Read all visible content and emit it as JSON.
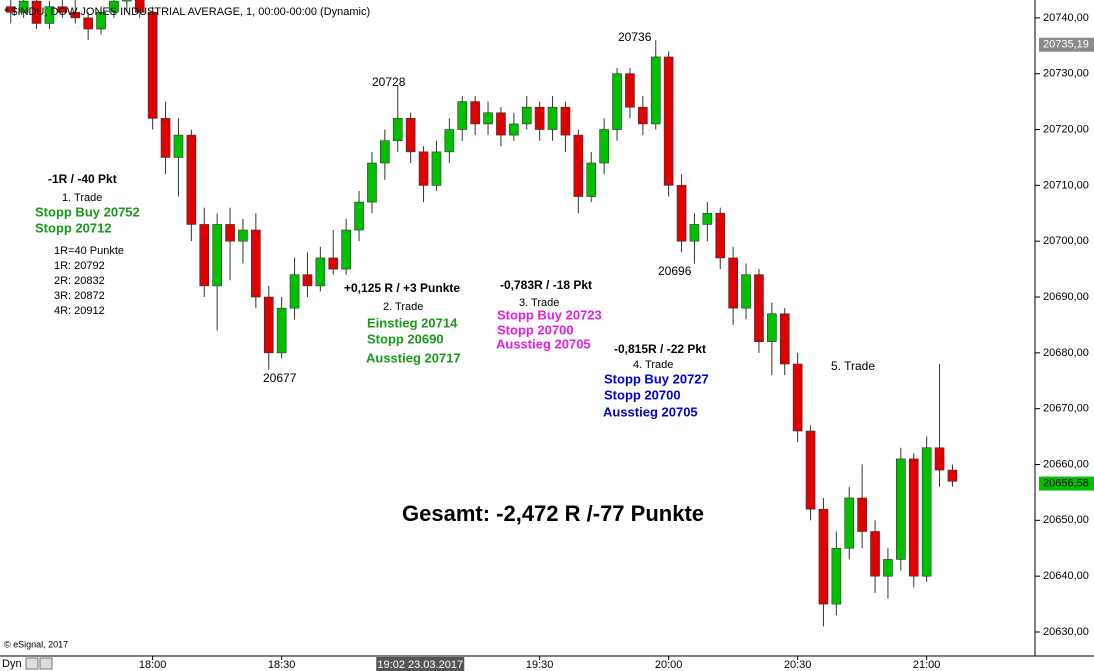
{
  "chart_data": {
    "type": "candlestick",
    "title": "* $INDU, DOW JONES INDUSTRIAL AVERAGE, 1, 00:00-00:00 (Dynamic)",
    "x": [
      1047,
      1050,
      1053,
      1056,
      1059,
      1062,
      1065,
      1068,
      1071,
      1074,
      1077,
      1080,
      1083,
      1086,
      1089,
      1092,
      1095,
      1098,
      1101,
      1104,
      1107,
      1110,
      1113,
      1116,
      1119,
      1122,
      1125,
      1128,
      1131,
      1134,
      1137,
      1140,
      1143,
      1146,
      1149,
      1152,
      1155,
      1158,
      1161,
      1164,
      1167,
      1170,
      1173,
      1176,
      1179,
      1182,
      1185,
      1188,
      1191,
      1194,
      1197,
      1200,
      1203,
      1206,
      1209,
      1212,
      1215,
      1218,
      1221,
      1224,
      1227,
      1230,
      1233,
      1236,
      1239,
      1242,
      1245,
      1248,
      1251,
      1254,
      1257,
      1260,
      1263,
      1266
    ],
    "ohlc": [
      [
        20742,
        20745,
        20739,
        20741
      ],
      [
        20741,
        20745,
        20740,
        20743
      ],
      [
        20743,
        20744,
        20738,
        20739
      ],
      [
        20739,
        20743,
        20738,
        20742
      ],
      [
        20742,
        20745,
        20740,
        20741
      ],
      [
        20741,
        20744,
        20739,
        20740
      ],
      [
        20740,
        20741,
        20736,
        20738
      ],
      [
        20738,
        20742,
        20737,
        20741
      ],
      [
        20741,
        20745,
        20740,
        20743
      ],
      [
        20743,
        20746,
        20741,
        20744
      ],
      [
        20744,
        20746,
        20740,
        20741
      ],
      [
        20741,
        20742,
        20720,
        20722
      ],
      [
        20722,
        20725,
        20712,
        20715
      ],
      [
        20715,
        20722,
        20708,
        20719
      ],
      [
        20719,
        20720,
        20700,
        20703
      ],
      [
        20703,
        20706,
        20690,
        20692
      ],
      [
        20692,
        20705,
        20684,
        20703
      ],
      [
        20703,
        20706,
        20693,
        20700
      ],
      [
        20700,
        20704,
        20696,
        20702
      ],
      [
        20702,
        20705,
        20688,
        20690
      ],
      [
        20690,
        20692,
        20677,
        20680
      ],
      [
        20680,
        20690,
        20679,
        20688
      ],
      [
        20688,
        20697,
        20686,
        20694
      ],
      [
        20694,
        20698,
        20690,
        20692
      ],
      [
        20692,
        20699,
        20691,
        20697
      ],
      [
        20697,
        20702,
        20694,
        20695
      ],
      [
        20695,
        20704,
        20694,
        20702
      ],
      [
        20702,
        20709,
        20700,
        20707
      ],
      [
        20707,
        20716,
        20705,
        20714
      ],
      [
        20714,
        20720,
        20711,
        20718
      ],
      [
        20718,
        20728,
        20716,
        20722
      ],
      [
        20722,
        20723,
        20714,
        20716
      ],
      [
        20716,
        20717,
        20707,
        20710
      ],
      [
        20710,
        20718,
        20709,
        20716
      ],
      [
        20716,
        20722,
        20714,
        20720
      ],
      [
        20720,
        20726,
        20718,
        20725
      ],
      [
        20725,
        20726,
        20719,
        20721
      ],
      [
        20721,
        20725,
        20719,
        20723
      ],
      [
        20723,
        20724,
        20717,
        20719
      ],
      [
        20719,
        20723,
        20718,
        20721
      ],
      [
        20721,
        20726,
        20720,
        20724
      ],
      [
        20724,
        20725,
        20718,
        20720
      ],
      [
        20720,
        20726,
        20718,
        20724
      ],
      [
        20724,
        20725,
        20716,
        20719
      ],
      [
        20719,
        20720,
        20705,
        20708
      ],
      [
        20708,
        20716,
        20707,
        20714
      ],
      [
        20714,
        20722,
        20712,
        20720
      ],
      [
        20720,
        20731,
        20718,
        20730
      ],
      [
        20730,
        20731,
        20722,
        20724
      ],
      [
        20724,
        20726,
        20719,
        20721
      ],
      [
        20721,
        20736,
        20720,
        20733
      ],
      [
        20733,
        20734,
        20708,
        20710
      ],
      [
        20710,
        20712,
        20698,
        20700
      ],
      [
        20700,
        20705,
        20696,
        20703
      ],
      [
        20703,
        20707,
        20700,
        20705
      ],
      [
        20705,
        20706,
        20695,
        20697
      ],
      [
        20697,
        20699,
        20685,
        20688
      ],
      [
        20688,
        20696,
        20686,
        20694
      ],
      [
        20694,
        20695,
        20680,
        20682
      ],
      [
        20682,
        20689,
        20676,
        20687
      ],
      [
        20687,
        20688,
        20676,
        20678
      ],
      [
        20678,
        20680,
        20664,
        20666
      ],
      [
        20666,
        20667,
        20650,
        20652
      ],
      [
        20652,
        20654,
        20631,
        20635
      ],
      [
        20635,
        20648,
        20633,
        20645
      ],
      [
        20645,
        20656,
        20643,
        20654
      ],
      [
        20654,
        20660,
        20645,
        20648
      ],
      [
        20648,
        20650,
        20637,
        20640
      ],
      [
        20640,
        20645,
        20636,
        20643
      ],
      [
        20643,
        20663,
        20641,
        20661
      ],
      [
        20661,
        20662,
        20638,
        20640
      ],
      [
        20640,
        20665,
        20639,
        20663
      ],
      [
        20663,
        20678,
        20656,
        20659
      ],
      [
        20659,
        20660,
        20656,
        20657
      ]
    ],
    "up_color": "#00c000",
    "down_color": "#e00000",
    "xlim": [
      1044.5,
      1285.2
    ],
    "xticks": [
      {
        "value": 1080,
        "label": "18:00"
      },
      {
        "value": 1110,
        "label": "18:30"
      },
      {
        "value": 1170,
        "label": "19:30"
      },
      {
        "value": 1200,
        "label": "20:00"
      },
      {
        "value": 1230,
        "label": "20:30"
      },
      {
        "value": 1260,
        "label": "21:00"
      }
    ],
    "x_cursor": {
      "value": 1142,
      "label": "19:02 23.03.2017"
    },
    "ylim": [
      20625.7,
      20743.2
    ],
    "yticks": [
      {
        "value": 20630,
        "label": "20630,00"
      },
      {
        "value": 20640,
        "label": "20640,00"
      },
      {
        "value": 20650,
        "label": "20650,00"
      },
      {
        "value": 20660,
        "label": "20660,00"
      },
      {
        "value": 20670,
        "label": "20670,00"
      },
      {
        "value": 20680,
        "label": "20680,00"
      },
      {
        "value": 20690,
        "label": "20690,00"
      },
      {
        "value": 20700,
        "label": "20700,00"
      },
      {
        "value": 20710,
        "label": "20710,00"
      },
      {
        "value": 20720,
        "label": "20720,00"
      },
      {
        "value": 20730,
        "label": "20730,00"
      },
      {
        "value": 20740,
        "label": "20740,00"
      }
    ],
    "price_markers": [
      {
        "value": 20735.19,
        "label": "20735,19",
        "color": "#8a8a8a"
      },
      {
        "value": 20656.58,
        "label": "20656,58",
        "color": "#00c000"
      }
    ],
    "annotations": [
      "-1R / -40 Pkt",
      "1. Trade",
      "Stopp Buy 20752",
      "Stopp 20712",
      "1R=40 Punkte",
      "1R: 20792",
      "2R: 20832",
      "3R: 20872",
      "4R: 20912",
      "20728",
      "20736",
      "20677",
      "20696",
      "+0,125 R / +3 Punkte",
      "2. Trade",
      "Einstieg 20714",
      "Stopp 20690",
      "Ausstieg 20717",
      "-0,783R / -18 Pkt",
      "3. Trade",
      "Stopp Buy 20723",
      "Stopp 20700",
      "Ausstieg 20705",
      "-0,815R / -22 Pkt",
      "4. Trade",
      "Stopp Buy 20727",
      "Stopp 20700",
      "Ausstieg 20705",
      "5. Trade",
      "Gesamt: -2,472 R /-77 Punkte"
    ],
    "footer": "© eSignal, 2017",
    "mode": "Dyn"
  }
}
